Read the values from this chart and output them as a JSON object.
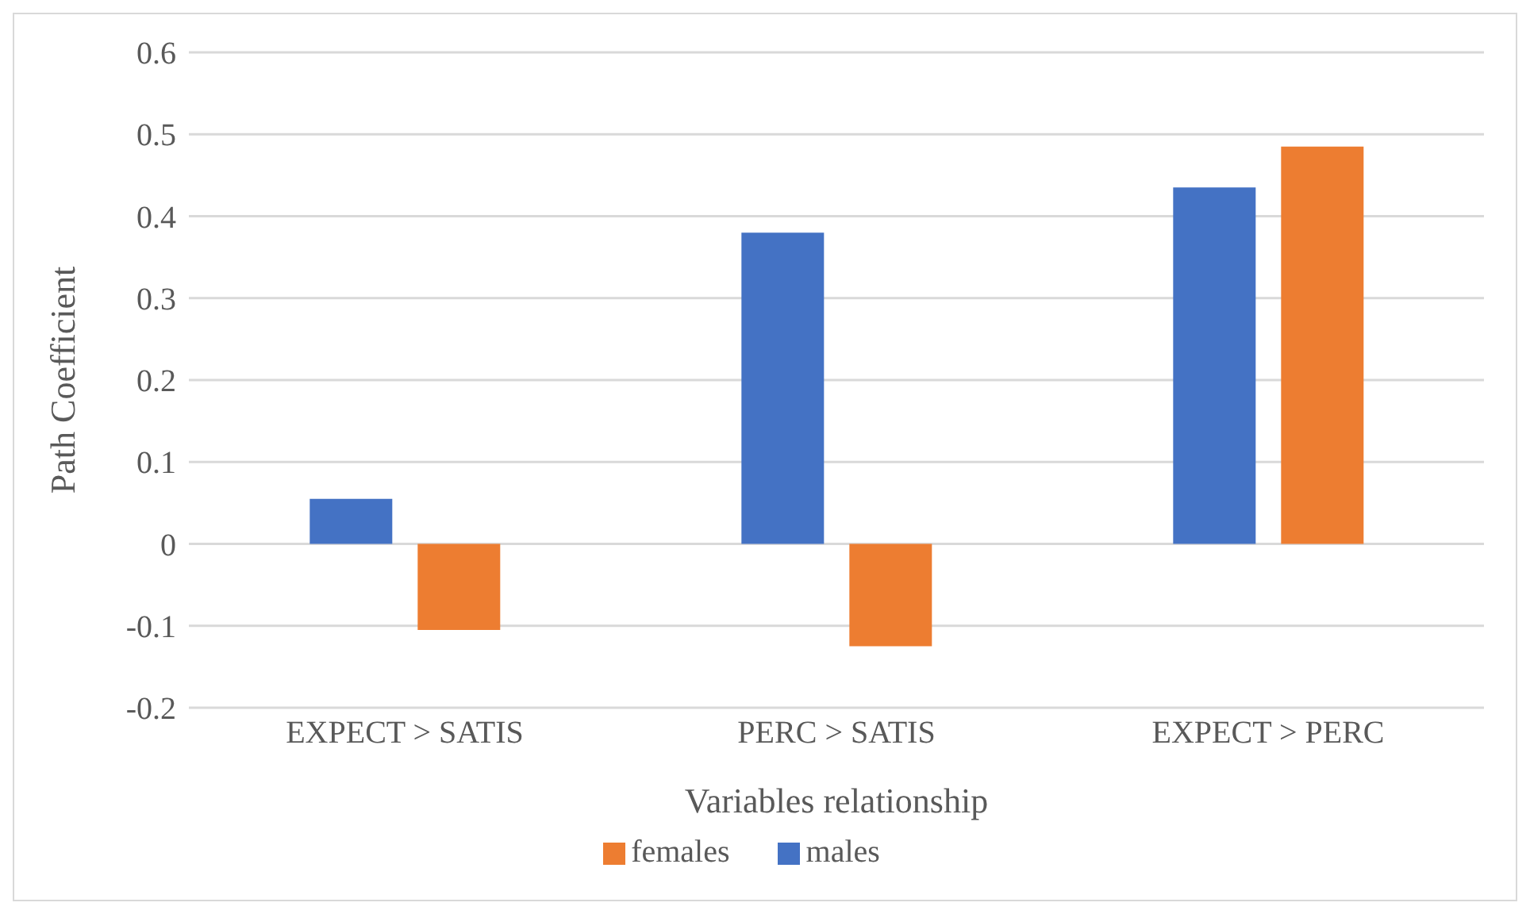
{
  "chart_data": {
    "type": "bar",
    "xlabel": "Variables relationship",
    "ylabel": "Path Coefficient",
    "categories": [
      "EXPECT > SATIS",
      "PERC > SATIS",
      "EXPECT > PERC"
    ],
    "series": [
      {
        "name": "males",
        "color": "#4472c4",
        "values": [
          0.055,
          0.38,
          0.435
        ]
      },
      {
        "name": "females",
        "color": "#ed7d31",
        "values": [
          -0.105,
          -0.125,
          0.485
        ]
      }
    ],
    "ylim": [
      -0.2,
      0.6
    ],
    "yticks": [
      -0.2,
      -0.1,
      0,
      0.1,
      0.2,
      0.3,
      0.4,
      0.5,
      0.6
    ],
    "grid": "y",
    "legend": "bottom"
  }
}
